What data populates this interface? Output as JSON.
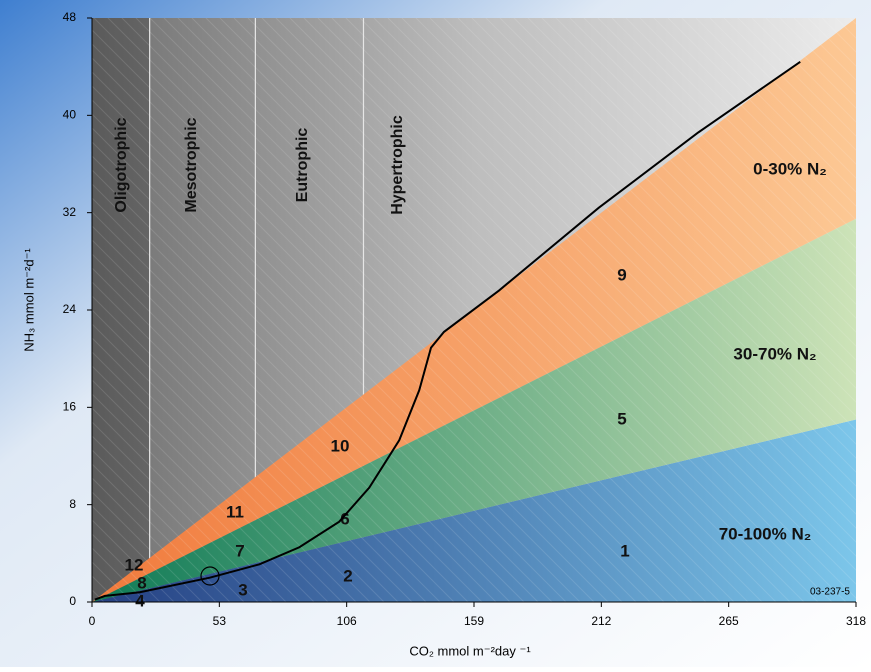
{
  "chart_data": [
    {
      "type": "area",
      "x_label": "CO₂ mmol m⁻²day ⁻¹",
      "y_label": "NH₃ mmol m⁻²d⁻¹",
      "code": "03-237-5",
      "x": [
        0,
        318
      ],
      "series": [
        {
          "name": "70-100% N₂",
          "color": "#243f82",
          "color_end": "#7cc6ea",
          "values": [
            0,
            15
          ]
        },
        {
          "name": "30-70% N₂",
          "color": "#0e7a56",
          "color_end": "#cde3b8",
          "values": [
            0,
            16.5
          ]
        },
        {
          "name": "0-30% N₂",
          "color": "#f07a3c",
          "color_end": "#fcc894",
          "values": [
            0,
            16.5
          ]
        }
      ],
      "zones": {
        "labels": [
          "Oligotrophic",
          "Mesotrophic",
          "Eutrophic",
          "Hypertrophic"
        ],
        "bounds": [
          24,
          68,
          113
        ]
      },
      "region_numbers": [
        "1",
        "2",
        "3",
        "4",
        "5",
        "6",
        "7",
        "8",
        "9",
        "10",
        "11",
        "12"
      ],
      "xlim": [
        0,
        318
      ],
      "xticks": [
        0,
        53,
        106,
        159,
        212,
        265,
        318
      ],
      "ylim": [
        0,
        48
      ],
      "yticks": [
        0,
        8,
        16,
        24,
        32,
        40,
        48
      ]
    },
    {
      "type": "line",
      "color": "#000000",
      "x": [
        1.2,
        5.4,
        19.9,
        49,
        69.7,
        86.3,
        102.9,
        115.4,
        127.9,
        136.2,
        141.1,
        146.5,
        169.4,
        210.9,
        252.4,
        294.8
      ],
      "values": [
        0.2,
        0.5,
        0.8,
        2.0,
        3.1,
        4.5,
        6.6,
        9.4,
        13.3,
        17.4,
        20.9,
        22.2,
        25.6,
        32.4,
        38.6,
        44.4
      ]
    }
  ]
}
